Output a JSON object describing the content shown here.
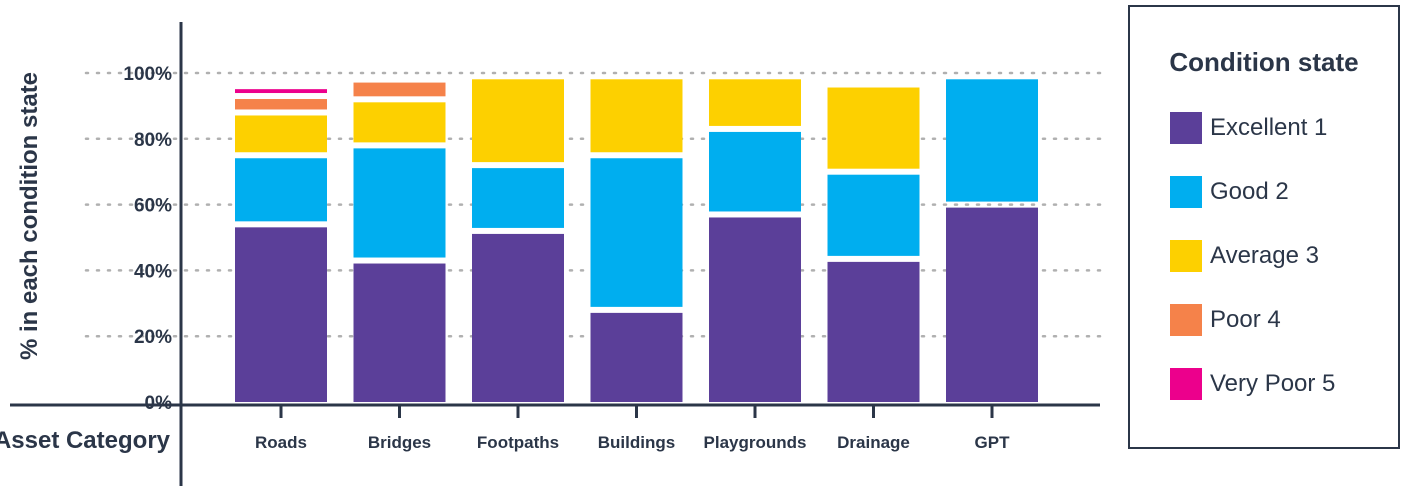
{
  "chart_data": {
    "type": "bar",
    "stacked": true,
    "ylabel": "% in each condition state",
    "xlabel": "Asset Category",
    "ylim": [
      0,
      100
    ],
    "yticks": [
      "0%",
      "20%",
      "40%",
      "60%",
      "80%",
      "100%"
    ],
    "grid": true,
    "legend_position": "right",
    "categories": [
      "Roads",
      "Bridges",
      "Footpaths",
      "Buildings",
      "Playgrounds",
      "Drainage",
      "GPT"
    ],
    "series": [
      {
        "name": "Excellent 1",
        "color": "#5b3f99",
        "values": [
          54,
          43,
          52,
          28,
          57,
          43.5,
          60
        ]
      },
      {
        "name": "Good 2",
        "color": "#00aeef",
        "values": [
          21,
          35,
          20,
          47,
          26,
          26.5,
          39
        ]
      },
      {
        "name": "Average 3",
        "color": "#fdd000",
        "values": [
          13,
          14,
          27,
          24,
          16,
          26.5,
          0
        ]
      },
      {
        "name": "Poor 4",
        "color": "#f5824a",
        "values": [
          5,
          6,
          0,
          0,
          0,
          0,
          0
        ]
      },
      {
        "name": "Very Poor 5",
        "color": "#ec008c",
        "values": [
          3,
          0,
          0,
          0,
          0,
          0,
          0
        ]
      }
    ]
  },
  "legend": {
    "title": "Condition state"
  }
}
